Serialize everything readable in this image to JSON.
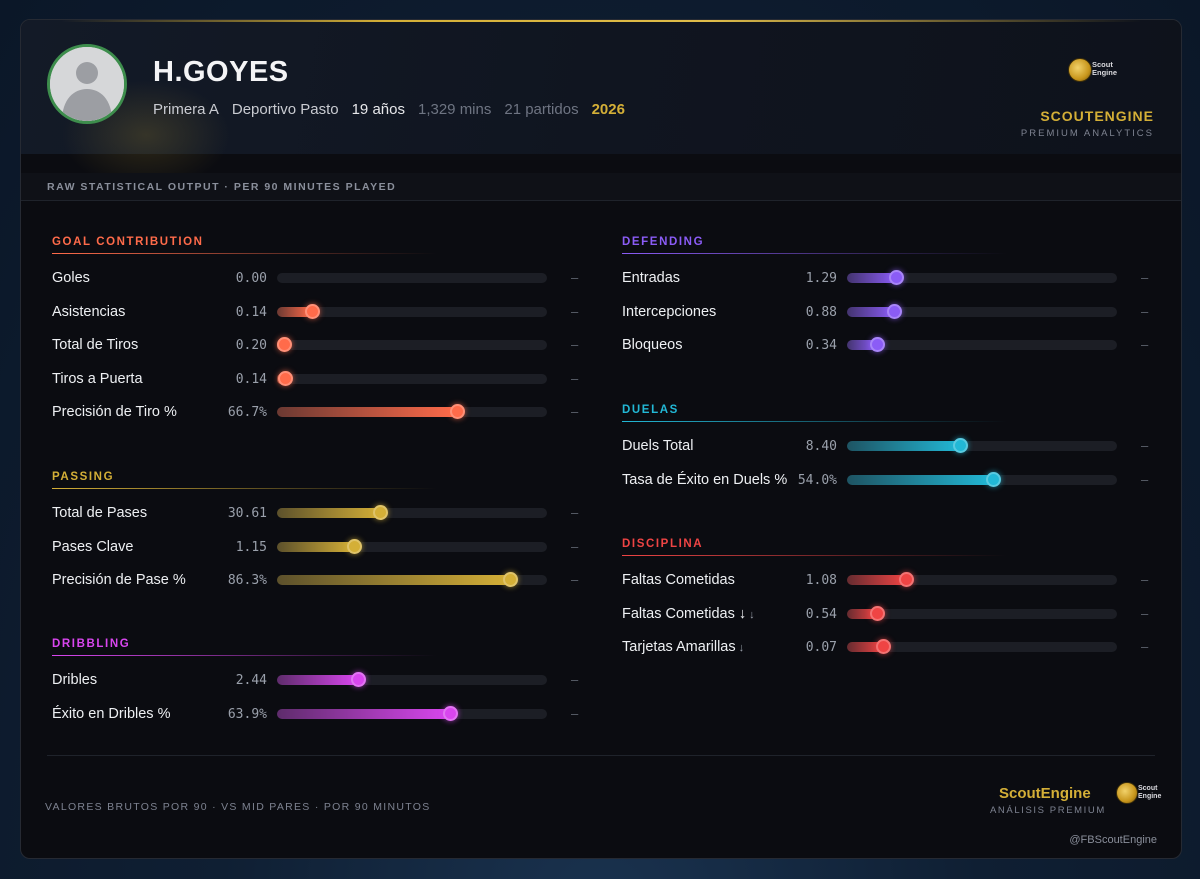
{
  "player": {
    "name": "H.GOYES",
    "league": "Primera A",
    "club": "Deportivo Pasto",
    "age": "19 años",
    "minutes": "1,329 mins",
    "matches": "21 partidos",
    "season": "2026"
  },
  "brand": {
    "logo_text": "Scout Engine",
    "name": "SCOUTENGINE",
    "tagline": "PREMIUM ANALYTICS"
  },
  "subtitle": "RAW STATISTICAL OUTPUT · PER 90 MINUTES PLAYED",
  "colors": {
    "gold": "#d4af37",
    "goal": "#ff6b4a",
    "passing": "#d4af37",
    "dribbling": "#d946ef",
    "defending": "#8b5cf6",
    "duels": "#22b8d6",
    "discipline": "#ef4444"
  },
  "sections": [
    {
      "key": "goal",
      "title": "GOAL CONTRIBUTION",
      "color": "#ff6b4a",
      "rows": [
        {
          "label": "Goles",
          "value": "0.00",
          "level": 0.0,
          "dash": "–"
        },
        {
          "label": "Asistencias",
          "value": "0.14",
          "level": 0.13,
          "dash": "–"
        },
        {
          "label": "Total de Tiros",
          "value": "0.20",
          "level": 0.025,
          "dash": "–"
        },
        {
          "label": "Tiros a Puerta",
          "value": "0.14",
          "level": 0.03,
          "dash": "–"
        },
        {
          "label": "Precisión de Tiro %",
          "value": "66.7%",
          "level": 0.667,
          "dash": "–"
        }
      ]
    },
    {
      "key": "passing",
      "title": "PASSING",
      "color": "#d4af37",
      "rows": [
        {
          "label": "Total de Pases",
          "value": "30.61",
          "level": 0.38,
          "dash": "–"
        },
        {
          "label": "Pases Clave",
          "value": "1.15",
          "level": 0.285,
          "dash": "–"
        },
        {
          "label": "Precisión de Pase %",
          "value": "86.3%",
          "level": 0.863,
          "dash": "–"
        }
      ]
    },
    {
      "key": "dribbling",
      "title": "DRIBBLING",
      "color": "#d946ef",
      "rows": [
        {
          "label": "Dribles",
          "value": "2.44",
          "level": 0.3,
          "dash": "–"
        },
        {
          "label": "Éxito en Dribles %",
          "value": "63.9%",
          "level": 0.639,
          "dash": "–"
        }
      ]
    },
    {
      "key": "defending",
      "title": "DEFENDING",
      "color": "#8b5cf6",
      "rows": [
        {
          "label": "Entradas",
          "value": "1.29",
          "level": 0.18,
          "dash": "–"
        },
        {
          "label": "Intercepciones",
          "value": "0.88",
          "level": 0.175,
          "dash": "–"
        },
        {
          "label": "Bloqueos",
          "value": "0.34",
          "level": 0.11,
          "dash": "–"
        }
      ]
    },
    {
      "key": "duels",
      "title": "DUELAS",
      "color": "#22b8d6",
      "rows": [
        {
          "label": "Duels Total",
          "value": "8.40",
          "level": 0.42,
          "dash": "–"
        },
        {
          "label": "Tasa de Éxito en Duels %",
          "value": "54.0%",
          "level": 0.54,
          "dash": "–"
        }
      ]
    },
    {
      "key": "discipline",
      "title": "DISCIPLINA",
      "color": "#ef4444",
      "rows": [
        {
          "label": "Faltas Cometidas",
          "value": "1.08",
          "level": 0.22,
          "dash": "–",
          "arrow": ""
        },
        {
          "label": "Faltas Cometidas ↓",
          "value": "0.54",
          "level": 0.11,
          "dash": "–",
          "arrow": "↓"
        },
        {
          "label": "Tarjetas Amarillas",
          "value": "0.07",
          "level": 0.135,
          "dash": "–",
          "arrow": "↓"
        }
      ]
    }
  ],
  "footer": {
    "note": "VALORES BRUTOS POR 90 · VS MID PARES · POR 90 MINUTOS",
    "brand": "ScoutEngine",
    "brand_sub": "ANÁLISIS PREMIUM",
    "logo_text": "Scout Engine",
    "handle": "@FBScoutEngine"
  }
}
